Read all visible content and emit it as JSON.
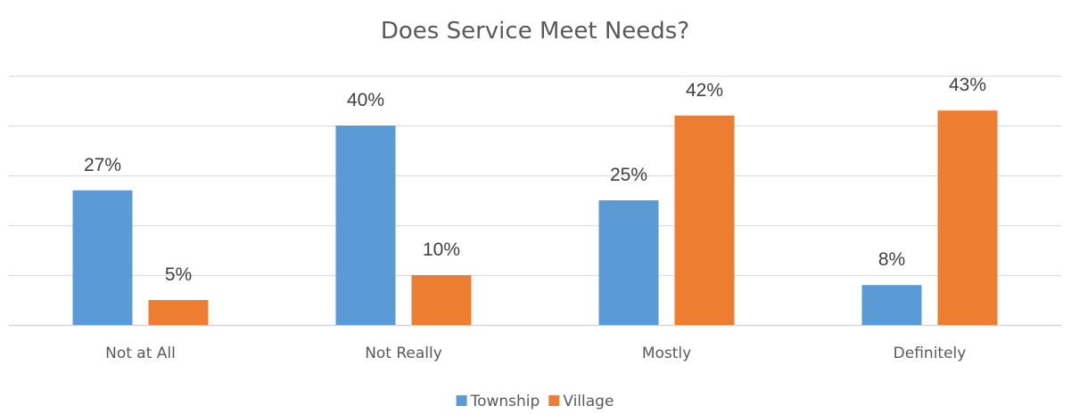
{
  "chart_data": {
    "type": "bar",
    "title": "Does Service Meet Needs?",
    "categories": [
      "Not at All",
      "Not Really",
      "Mostly",
      "Definitely"
    ],
    "series": [
      {
        "name": "Township",
        "values": [
          27,
          40,
          25,
          8
        ],
        "labels": [
          "27%",
          "40%",
          "25%",
          "8%"
        ],
        "color": "#5b9bd5"
      },
      {
        "name": "Village",
        "values": [
          5,
          10,
          42,
          43
        ],
        "labels": [
          "5%",
          "10%",
          "42%",
          "43%"
        ],
        "color": "#ed7d31"
      }
    ],
    "ylim": [
      0,
      50
    ],
    "grid": true,
    "legend": "bottom",
    "xlabel": "",
    "ylabel": ""
  }
}
